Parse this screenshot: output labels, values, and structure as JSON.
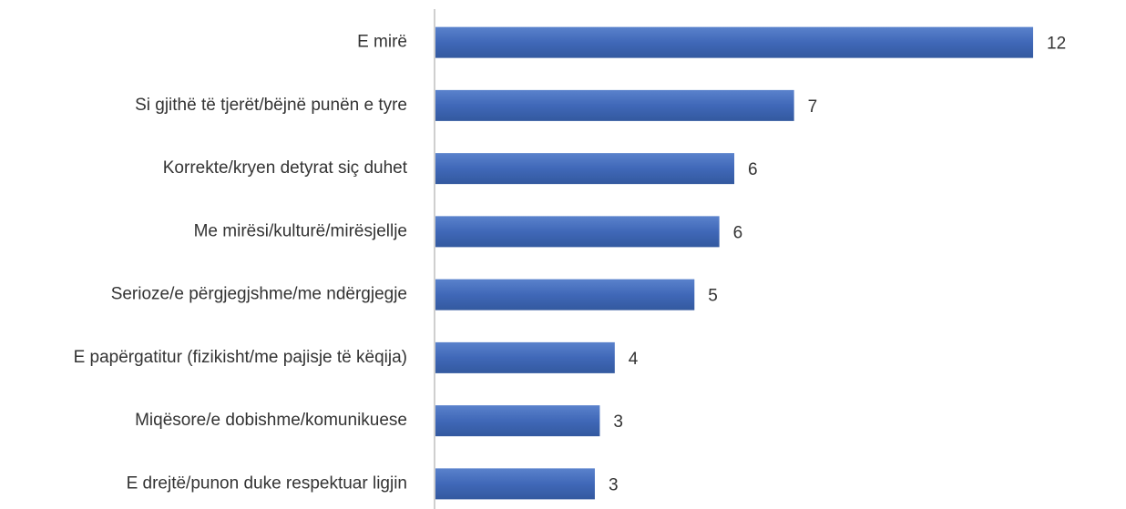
{
  "chart_data": {
    "type": "barh",
    "categories": [
      "E mirë",
      "Si gjithë të tjerët/bëjnë punën e tyre",
      "Korrekte/kryen detyrat siç duhet",
      "Me mirësi/kulturë/mirësjellje",
      "Serioze/e përgjegjshme/me ndërgjegje",
      "E papërgatitur (fizikisht/me pajisje të këqija)",
      "Miqësore/e dobishme/komunikuese",
      "E drejtë/punon duke respektuar ligjin"
    ],
    "values": [
      12.0,
      7.2,
      6.0,
      5.7,
      5.2,
      3.6,
      3.3,
      3.2
    ],
    "value_labels": [
      "12",
      "7",
      "6",
      "6",
      "5",
      "4",
      "3",
      "3"
    ],
    "color": "#4068b8",
    "xlim": [
      0,
      13
    ]
  }
}
